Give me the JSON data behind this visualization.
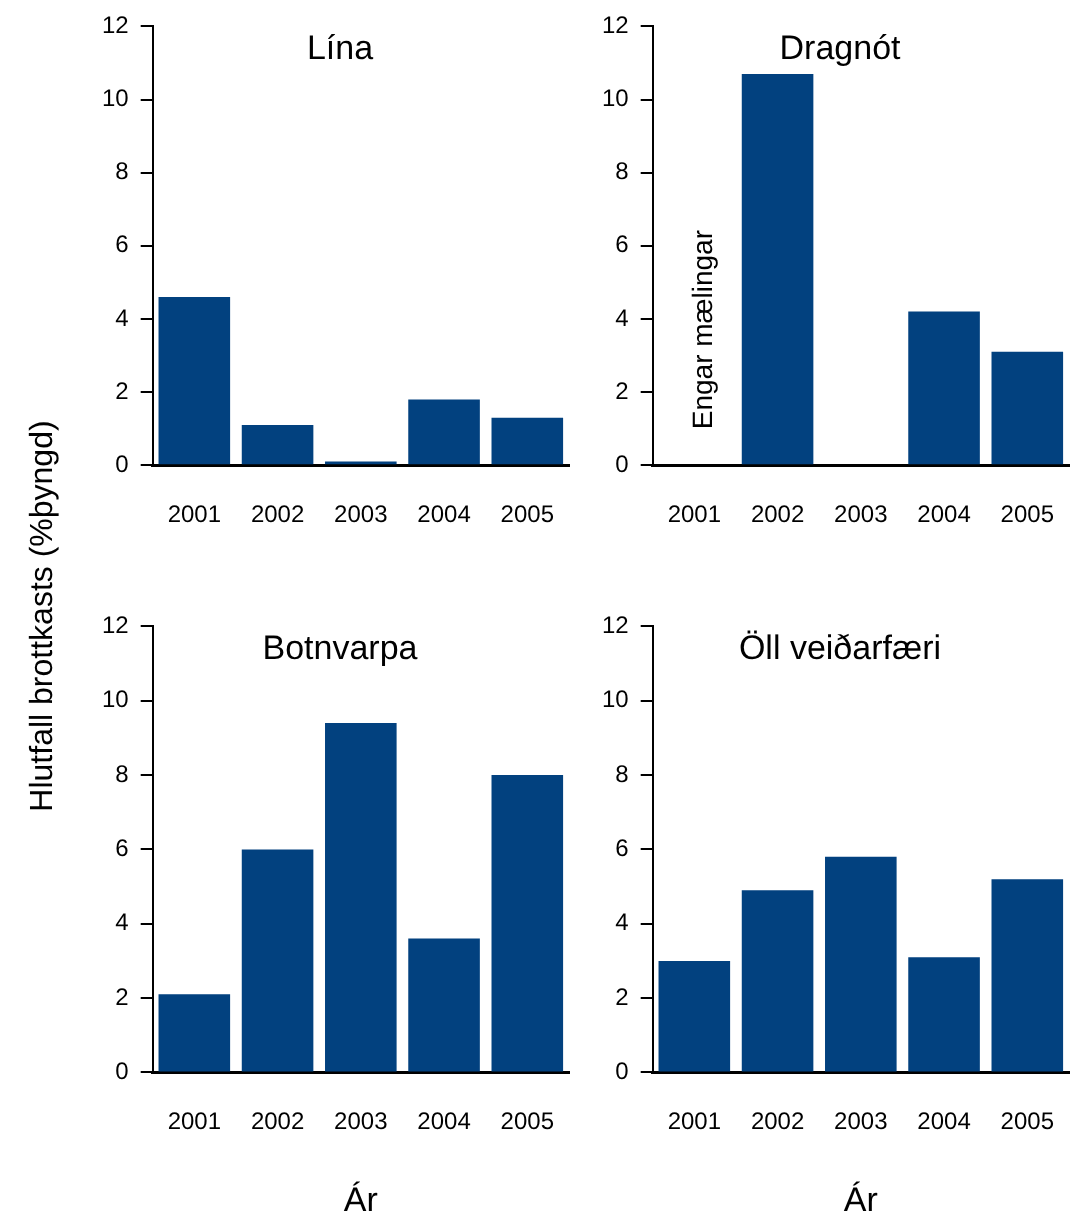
{
  "chart_data": [
    {
      "type": "bar",
      "title": "Lína",
      "ylabel": "Hlutfall brottkasts (%þyngd)",
      "categories": [
        "2001",
        "2002",
        "2003",
        "2004",
        "2005"
      ],
      "values": [
        4.6,
        1.1,
        0.1,
        1.8,
        1.3
      ],
      "color": "#02417f",
      "ylim": [
        0,
        12
      ],
      "yticks": [
        0,
        2,
        4,
        6,
        8,
        10,
        12
      ],
      "grid": false
    },
    {
      "type": "bar",
      "title": "Dragnót",
      "categories": [
        "2001",
        "2002",
        "2003",
        "2004",
        "2005"
      ],
      "values": [
        null,
        10.7,
        0,
        4.2,
        3.1
      ],
      "color": "#02417f",
      "ylim": [
        0,
        12
      ],
      "yticks": [
        0,
        2,
        4,
        6,
        8,
        10,
        12
      ],
      "grid": false,
      "annotations": [
        "Engar mælingar"
      ]
    },
    {
      "type": "bar",
      "title": "Botnvarpa",
      "xlabel": "Ár",
      "categories": [
        "2001",
        "2002",
        "2003",
        "2004",
        "2005"
      ],
      "values": [
        2.1,
        6.0,
        9.4,
        3.6,
        8.0
      ],
      "color": "#02417f",
      "ylim": [
        0,
        12
      ],
      "yticks": [
        0,
        2,
        4,
        6,
        8,
        10,
        12
      ],
      "grid": false
    },
    {
      "type": "bar",
      "title": "Öll veiðarfæri",
      "xlabel": "Ár",
      "categories": [
        "2001",
        "2002",
        "2003",
        "2004",
        "2005"
      ],
      "values": [
        3.0,
        4.9,
        5.8,
        3.1,
        5.2
      ],
      "color": "#02417f",
      "ylim": [
        0,
        12
      ],
      "yticks": [
        0,
        2,
        4,
        6,
        8,
        10,
        12
      ],
      "grid": false
    }
  ]
}
